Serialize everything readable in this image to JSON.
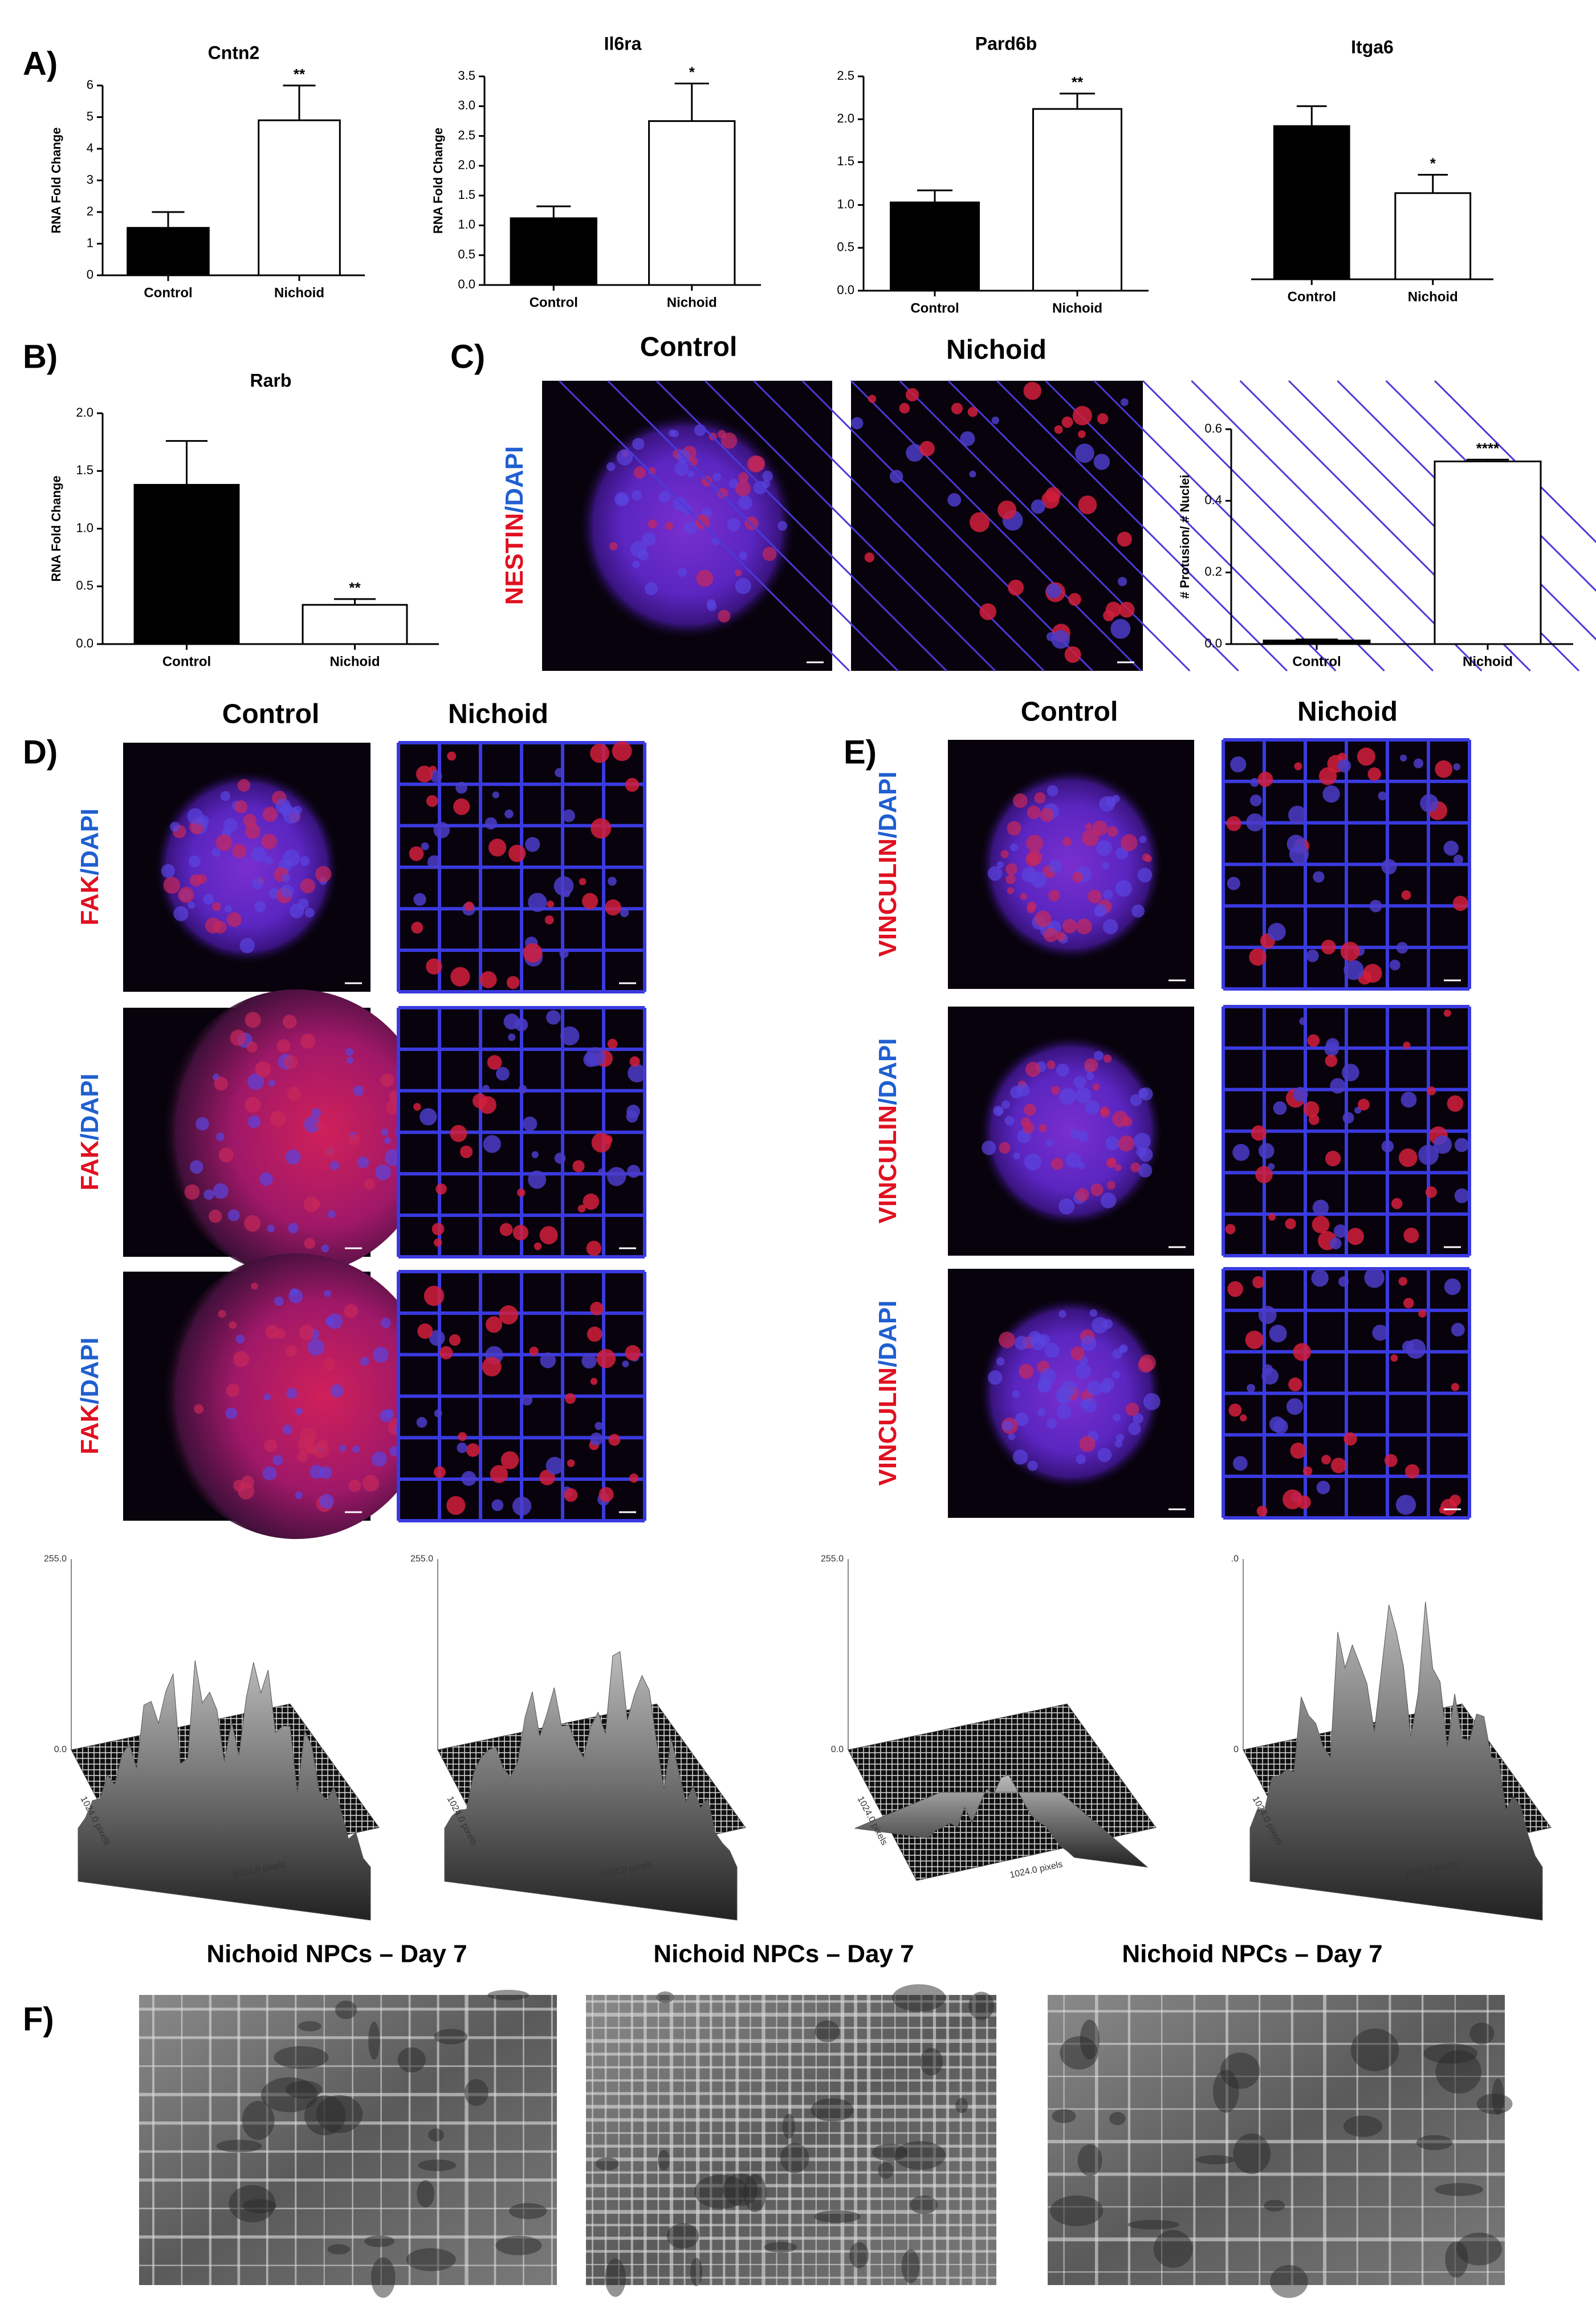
{
  "panel_labels": [
    "A)",
    "B)",
    "C)",
    "D)",
    "E)",
    "F)"
  ],
  "chart_data": [
    {
      "type": "bar",
      "title": "Cntn2",
      "y_label": "RNA Fold Change",
      "categories": [
        "Control",
        "Nichoid"
      ],
      "values": [
        1.5,
        4.9
      ],
      "errors": [
        0.5,
        1.1
      ],
      "colors": [
        "#000000",
        "#ffffff"
      ],
      "significance": [
        null,
        "**"
      ],
      "ylim": [
        0,
        6
      ],
      "yticks": [
        0,
        1,
        2,
        3,
        4,
        5,
        6
      ]
    },
    {
      "type": "bar",
      "title": "Il6ra",
      "y_label": "RNA Fold Change",
      "categories": [
        "Control",
        "Nichoid"
      ],
      "values": [
        1.12,
        2.75
      ],
      "errors": [
        0.2,
        0.63
      ],
      "colors": [
        "#000000",
        "#ffffff"
      ],
      "significance": [
        null,
        "*"
      ],
      "ylim": [
        0,
        3.5
      ],
      "yticks": [
        {
          "value": 0,
          "label": "0.0"
        },
        0.5,
        {
          "value": 1,
          "label": "1.0"
        },
        1.5,
        {
          "value": 2,
          "label": "2.0"
        },
        2.5,
        {
          "value": 3,
          "label": "3.0"
        },
        3.5
      ]
    },
    {
      "type": "bar",
      "title": "Pard6b",
      "categories": [
        "Control",
        "Nichoid"
      ],
      "values": [
        1.03,
        2.12
      ],
      "errors": [
        0.14,
        0.18
      ],
      "colors": [
        "#000000",
        "#ffffff"
      ],
      "significance": [
        null,
        "**"
      ],
      "ylim": [
        0,
        2.5
      ],
      "yticks": [
        {
          "value": 0,
          "label": "0.0"
        },
        0.5,
        {
          "value": 1,
          "label": "1.0"
        },
        1.5,
        {
          "value": 2,
          "label": "2.0"
        },
        2.5
      ]
    },
    {
      "type": "bar",
      "title": "Itga6",
      "categories": [
        "Control",
        "Nichoid"
      ],
      "values": [
        1.92,
        1.08
      ],
      "errors": [
        0.25,
        0.23
      ],
      "colors": [
        "#000000",
        "#ffffff"
      ],
      "significance": [
        null,
        "*"
      ],
      "ylim": [
        0,
        2.5
      ]
    },
    {
      "type": "bar",
      "title": "Rarb",
      "y_label": "RNA Fold Change",
      "categories": [
        "Control",
        "Nichoid"
      ],
      "values": [
        1.38,
        0.34
      ],
      "errors": [
        0.38,
        0.05
      ],
      "colors": [
        "#000000",
        "#ffffff"
      ],
      "significance": [
        null,
        "**"
      ],
      "ylim": [
        0,
        2
      ],
      "yticks": [
        {
          "value": 0,
          "label": "0.0"
        },
        0.5,
        {
          "value": 1,
          "label": "1.0"
        },
        1.5,
        {
          "value": 2,
          "label": "2.0"
        }
      ]
    },
    {
      "type": "bar",
      "y_label": "# Protusion/ # Nuclei",
      "categories": [
        "Control",
        "Nichoid"
      ],
      "values": [
        0.01,
        0.51
      ],
      "errors": [
        0.003,
        0.005
      ],
      "colors": [
        "#000000",
        "#ffffff"
      ],
      "significance": [
        null,
        "****"
      ],
      "ylim": [
        0,
        0.6
      ],
      "yticks": [
        {
          "value": 0,
          "label": "0.0"
        },
        0.2,
        0.4,
        0.6
      ]
    }
  ],
  "panel_c": {
    "headers": [
      "Control",
      "Nichoid"
    ],
    "stain": [
      "NESTIN",
      "/DAPI"
    ]
  },
  "panel_d": {
    "headers": [
      "Control",
      "Nichoid"
    ],
    "stain": [
      "FAK",
      "/DAPI"
    ]
  },
  "panel_e": {
    "headers": [
      "Control",
      "Nichoid"
    ],
    "stain": [
      "VINCULIN",
      "/DAPI"
    ]
  },
  "surface_plots": [
    {
      "z_max": "255.0",
      "z_min": "0.0",
      "x_label": "1024.0 pixels",
      "y_label": "1024.0 pixels"
    },
    {
      "z_max": "255.0",
      "x_label": "1024.0 pixels",
      "y_label": "1024.0 pixels"
    },
    {
      "z_max": "255.0",
      "z_min": "0.0",
      "x_label": "1024.0 pixels",
      "y_label": "1024.0 pixels"
    },
    {
      "z_max": ".0",
      "z_min": "0",
      "x_label": "1024.0 pixels",
      "y_label": "1024.0 pixels"
    }
  ],
  "panel_f": {
    "titles": [
      "Nichoid NPCs – Day 7",
      "Nichoid NPCs – Day 7",
      "Nichoid NPCs – Day 7"
    ]
  }
}
